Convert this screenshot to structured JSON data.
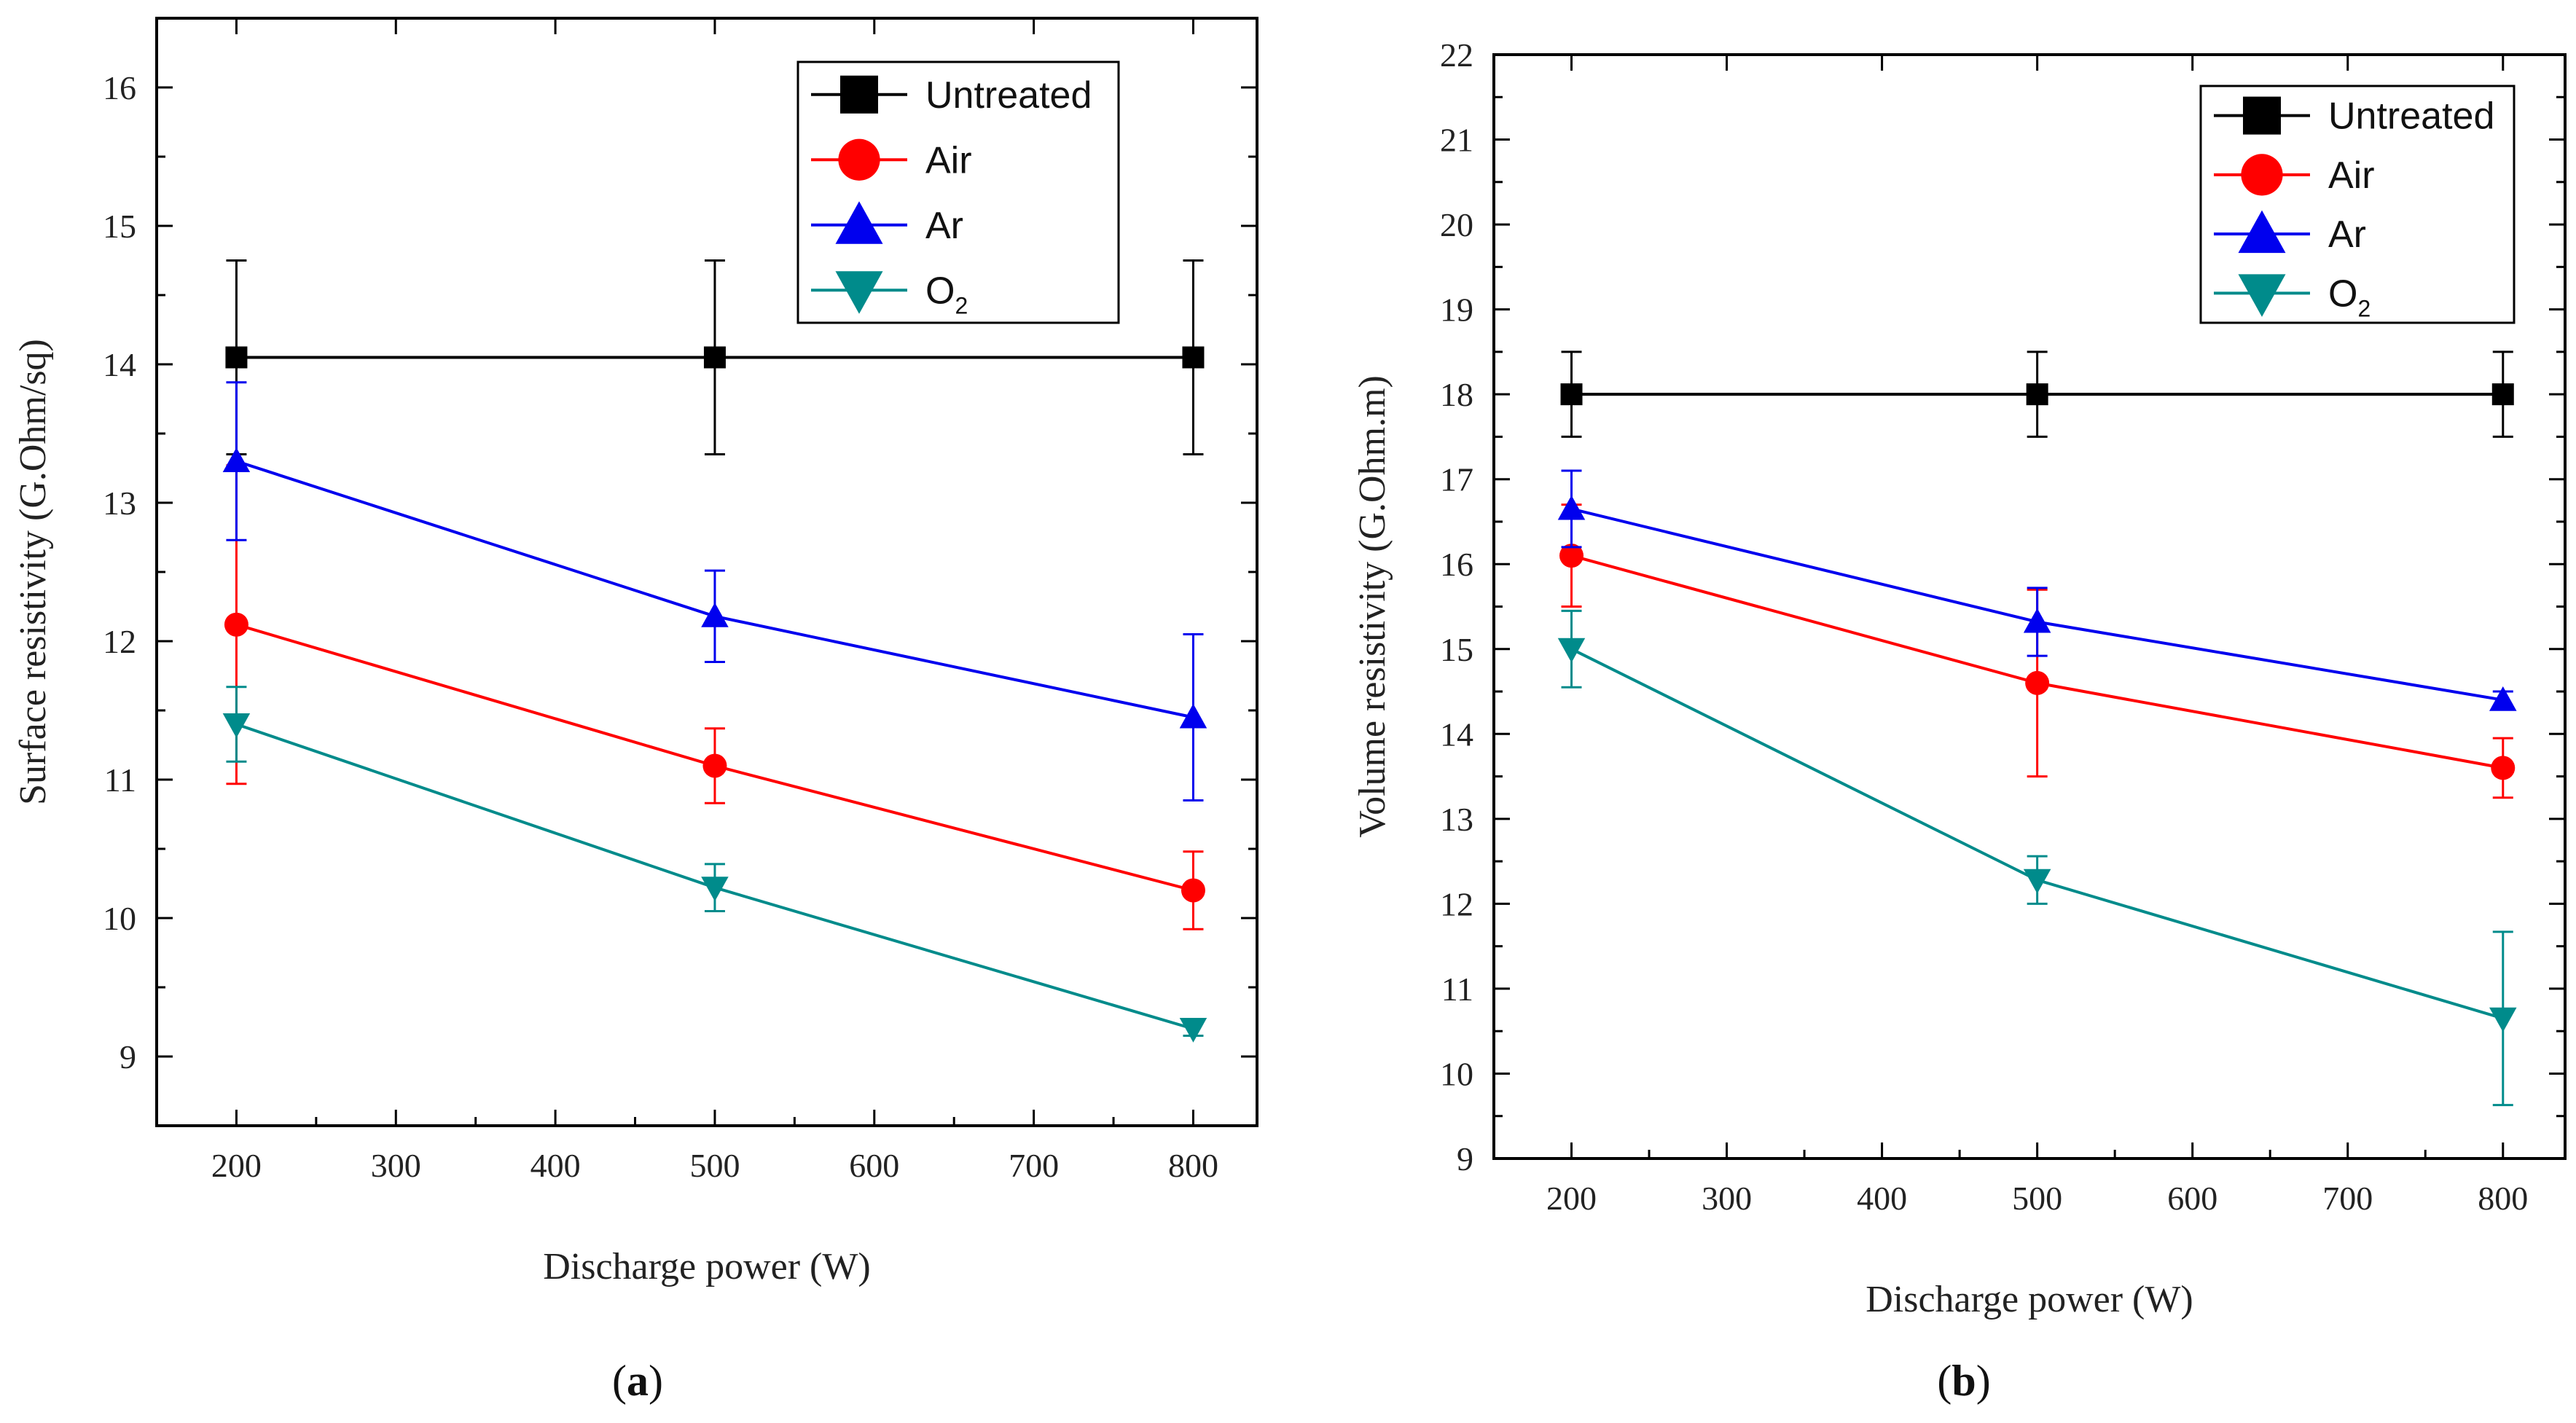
{
  "chart_data": [
    {
      "type": "line",
      "panel": "a",
      "caption_open": "(",
      "caption_letter": "a",
      "caption_close": ")",
      "xlabel": "Discharge power (W)",
      "ylabel": "Surface resistivity (G.Ohm/sq)",
      "xlim": [
        150,
        840
      ],
      "ylim": [
        8.5,
        16.5
      ],
      "xticks": [
        200,
        300,
        400,
        500,
        600,
        700,
        800
      ],
      "yticks": [
        9,
        10,
        11,
        12,
        13,
        14,
        15,
        16
      ],
      "x": [
        200,
        500,
        800
      ],
      "series": [
        {
          "name": "Untreated",
          "sub": "",
          "marker": "square",
          "color": "#000000",
          "values": [
            14.05,
            14.05,
            14.05
          ],
          "errors": [
            0.7,
            0.7,
            0.7
          ]
        },
        {
          "name": "Air",
          "sub": "",
          "marker": "circle",
          "color": "#ff0000",
          "values": [
            12.12,
            11.1,
            10.2
          ],
          "errors": [
            1.15,
            0.27,
            0.28
          ]
        },
        {
          "name": "Ar",
          "sub": "",
          "marker": "triangle-up",
          "color": "#0000ee",
          "values": [
            13.3,
            12.18,
            11.45
          ],
          "errors": [
            0.57,
            0.33,
            0.6
          ]
        },
        {
          "name": "O",
          "sub": "2",
          "marker": "triangle-down",
          "color": "#008b8b",
          "values": [
            11.4,
            10.22,
            9.2
          ],
          "errors": [
            0.27,
            0.17,
            0.05
          ]
        }
      ],
      "legend_position": "top-right"
    },
    {
      "type": "line",
      "panel": "b",
      "caption_open": "(",
      "caption_letter": "b",
      "caption_close": ")",
      "xlabel": "Discharge power (W)",
      "ylabel": "Volume resistivity (G.Ohm.m)",
      "xlim": [
        150,
        840
      ],
      "ylim": [
        9,
        22
      ],
      "xticks": [
        200,
        300,
        400,
        500,
        600,
        700,
        800
      ],
      "yticks": [
        9,
        10,
        11,
        12,
        13,
        14,
        15,
        16,
        17,
        18,
        19,
        20,
        21,
        22
      ],
      "x": [
        200,
        500,
        800
      ],
      "series": [
        {
          "name": "Untreated",
          "sub": "",
          "marker": "square",
          "color": "#000000",
          "values": [
            18.0,
            18.0,
            18.0
          ],
          "errors": [
            0.5,
            0.5,
            0.5
          ]
        },
        {
          "name": "Air",
          "sub": "",
          "marker": "circle",
          "color": "#ff0000",
          "values": [
            16.1,
            14.6,
            13.6
          ],
          "errors": [
            0.6,
            1.1,
            0.35
          ]
        },
        {
          "name": "Ar",
          "sub": "",
          "marker": "triangle-up",
          "color": "#0000ee",
          "values": [
            16.65,
            15.32,
            14.4
          ],
          "errors": [
            0.45,
            0.4,
            0.1
          ]
        },
        {
          "name": "O",
          "sub": "2",
          "marker": "triangle-down",
          "color": "#008b8b",
          "values": [
            15.0,
            12.28,
            10.65
          ],
          "errors": [
            0.45,
            0.28,
            1.02
          ]
        }
      ],
      "legend_position": "top-right"
    }
  ]
}
